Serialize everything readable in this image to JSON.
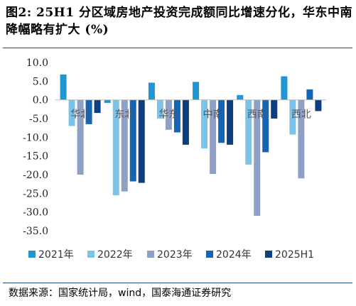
{
  "title": "图2:  25H1 分区域房地产投资完成额同比增速分化，华东中南降幅略有扩大 (%)",
  "source": "数据来源：国家统计局，wind，国泰海通证券研究",
  "chart_data": {
    "type": "bar",
    "categories": [
      "华北",
      "东北",
      "华东",
      "中南",
      "西南",
      "西北"
    ],
    "series": [
      {
        "name": "2021年",
        "color": "#1f97d4",
        "values": [
          6.8,
          -0.8,
          4.6,
          4.8,
          1.3,
          6.3
        ]
      },
      {
        "name": "2022年",
        "color": "#7cc3ea",
        "values": [
          -7.0,
          -25.5,
          -5.0,
          -13.0,
          -17.3,
          -9.3
        ]
      },
      {
        "name": "2023年",
        "color": "#8fa0c6",
        "values": [
          -20.0,
          -24.5,
          -8.0,
          -19.8,
          -31.0,
          -21.0
        ]
      },
      {
        "name": "2024年",
        "color": "#1565b5",
        "values": [
          -6.5,
          -21.8,
          -8.7,
          -11.5,
          -14.0,
          2.8
        ]
      },
      {
        "name": "2025H1",
        "color": "#0d3f80",
        "values": [
          -3.5,
          -22.2,
          -12.0,
          -12.0,
          -5.0,
          -3.0
        ]
      }
    ],
    "yticks": [
      "10.0",
      "5.0",
      "0.0",
      "-5.0",
      "-10.0",
      "-15.0",
      "-20.0",
      "-25.0",
      "-30.0",
      "-35.0"
    ],
    "ylim": [
      -35,
      10
    ],
    "legend_position": "bottom"
  }
}
